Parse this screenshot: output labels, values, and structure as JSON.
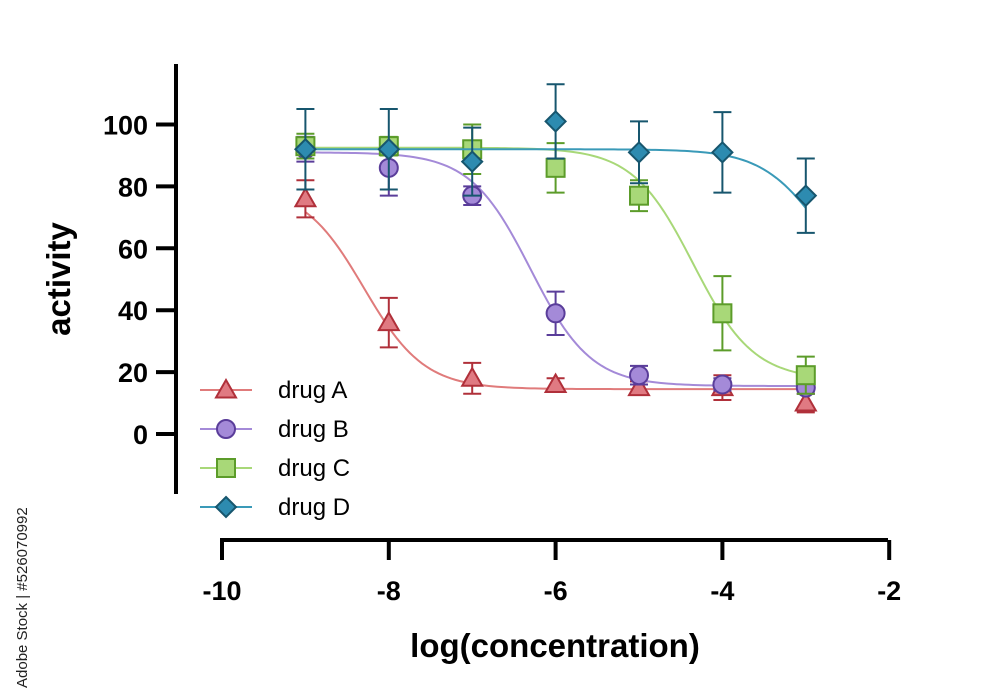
{
  "chart_data": {
    "type": "line",
    "xlabel": "log(concentration)",
    "ylabel": "activity",
    "xlim": [
      -10,
      -2
    ],
    "ylim": [
      -18,
      118
    ],
    "x_ticks": [
      -10,
      -8,
      -6,
      -4,
      -2
    ],
    "y_ticks": [
      0,
      20,
      40,
      60,
      80,
      100
    ],
    "x_tick_labels": [
      "-10",
      "-8",
      "-6",
      "-4",
      "-2"
    ],
    "y_tick_labels": [
      "0",
      "20",
      "40",
      "60",
      "80",
      "100"
    ],
    "legend_position": "bottom-left",
    "grid": false,
    "series": [
      {
        "name": "drug A",
        "marker": "triangle",
        "line_color": "#e07b7b",
        "marker_fill": "#e07a82",
        "marker_edge": "#b0303a",
        "x": [
          -9,
          -8,
          -7,
          -6,
          -5,
          -4,
          -3
        ],
        "y": [
          76,
          36,
          18,
          16,
          15,
          15,
          10
        ],
        "err": [
          6,
          8,
          5,
          2,
          2,
          4,
          3
        ],
        "fit": {
          "top": 80,
          "bottom": 14.5,
          "logIC50": -8.3,
          "hill": 1.2
        }
      },
      {
        "name": "drug B",
        "marker": "circle",
        "line_color": "#a48ad8",
        "marker_fill": "#a48ad8",
        "marker_edge": "#5a3d9a",
        "x": [
          -9,
          -8,
          -7,
          -6,
          -5,
          -4,
          -3
        ],
        "y": [
          92,
          86,
          77,
          39,
          19,
          16,
          15
        ],
        "err": [
          4,
          9,
          3,
          7,
          3,
          2,
          2
        ],
        "fit": {
          "top": 91,
          "bottom": 15.5,
          "logIC50": -6.3,
          "hill": 1.2
        }
      },
      {
        "name": "drug C",
        "marker": "square",
        "line_color": "#a8d878",
        "marker_fill": "#a8d878",
        "marker_edge": "#5c9c2a",
        "x": [
          -9,
          -8,
          -7,
          -6,
          -5,
          -4,
          -3
        ],
        "y": [
          93,
          93,
          92,
          86,
          77,
          39,
          19
        ],
        "err": [
          4,
          3,
          8,
          8,
          5,
          12,
          6
        ],
        "fit": {
          "top": 92.5,
          "bottom": 17.5,
          "logIC50": -4.35,
          "hill": 1.2
        }
      },
      {
        "name": "drug D",
        "marker": "diamond",
        "line_color": "#3a9ab8",
        "marker_fill": "#2d8bb0",
        "marker_edge": "#17566e",
        "x": [
          -9,
          -8,
          -7,
          -6,
          -5,
          -4,
          -3
        ],
        "y": [
          92,
          92,
          88,
          101,
          91,
          91,
          77
        ],
        "err": [
          13,
          13,
          11,
          12,
          10,
          13,
          12
        ],
        "fit": {
          "top": 92,
          "bottom": 40,
          "logIC50": -2.8,
          "hill": 1.2
        }
      }
    ]
  },
  "credit": {
    "text": "Adobe Stock | #526070992"
  }
}
